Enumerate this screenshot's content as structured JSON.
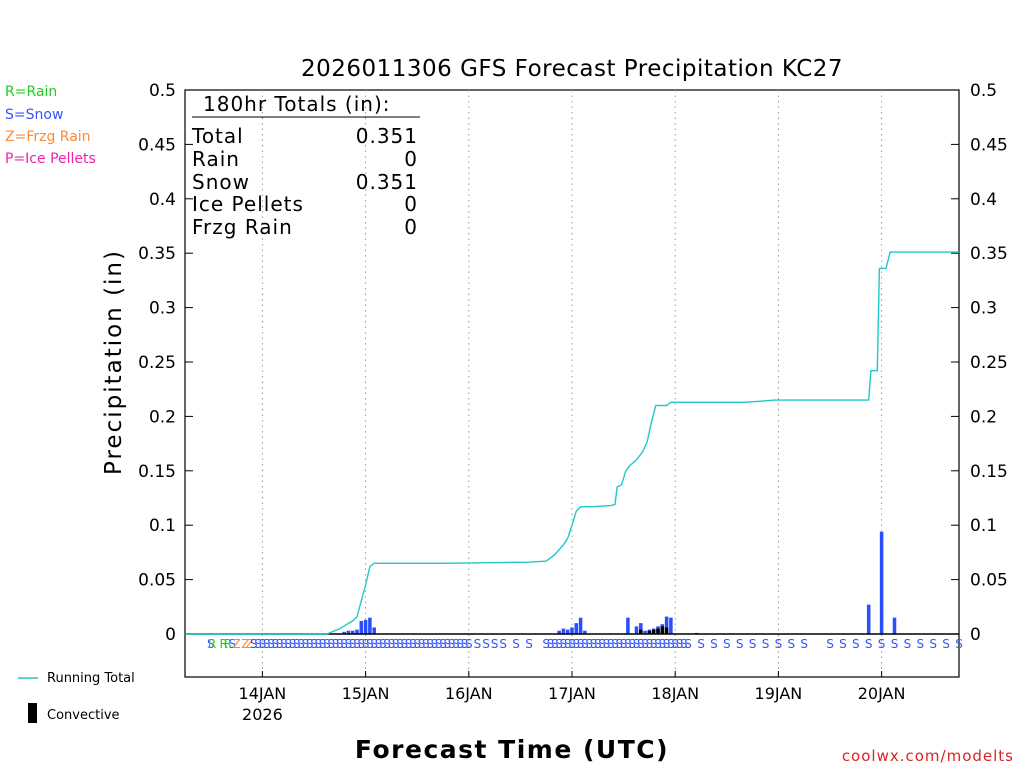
{
  "chart_data": {
    "type": "bar+line",
    "title": "2026011306 GFS Forecast Precipitation KC27",
    "xlabel": "Forecast Time (UTC)",
    "ylabel": "Precipitation (in)",
    "ylim": [
      -0.04,
      0.5
    ],
    "xlim": [
      0,
      180
    ],
    "y_ticks": [
      {
        "value": 0,
        "label": "0"
      },
      {
        "value": 0.05,
        "label": "0.05"
      },
      {
        "value": 0.1,
        "label": "0.1"
      },
      {
        "value": 0.15,
        "label": "0.15"
      },
      {
        "value": 0.2,
        "label": "0.2"
      },
      {
        "value": 0.25,
        "label": "0.25"
      },
      {
        "value": 0.3,
        "label": "0.3"
      },
      {
        "value": 0.35,
        "label": "0.35"
      },
      {
        "value": 0.4,
        "label": "0.4"
      },
      {
        "value": 0.45,
        "label": "0.45"
      },
      {
        "value": 0.5,
        "label": "0.5"
      }
    ],
    "x_ticks": [
      {
        "hour": 18,
        "label": "14JAN",
        "sublabel": "2026"
      },
      {
        "hour": 42,
        "label": "15JAN"
      },
      {
        "hour": 66,
        "label": "16JAN"
      },
      {
        "hour": 90,
        "label": "17JAN"
      },
      {
        "hour": 114,
        "label": "18JAN"
      },
      {
        "hour": 138,
        "label": "19JAN"
      },
      {
        "hour": 162,
        "label": "20JAN"
      }
    ],
    "legend_types": [
      {
        "label": "R=Rain",
        "color": "#22cc22"
      },
      {
        "label": "S=Snow",
        "color": "#3355ff"
      },
      {
        "label": "Z=Frzg Rain",
        "color": "#ff8833"
      },
      {
        "label": "P=Ice Pellets",
        "color": "#ee22aa"
      }
    ],
    "legend_series": [
      {
        "label": "Running Total",
        "color": "#22c8c8",
        "kind": "line"
      },
      {
        "label": "Convective",
        "color": "#000000",
        "kind": "bar"
      }
    ],
    "totals": {
      "header": "180hr Totals (in):",
      "rows": [
        {
          "label": "Total",
          "value": "0.351"
        },
        {
          "label": "Rain",
          "value": "0"
        },
        {
          "label": "Snow",
          "value": "0.351"
        },
        {
          "label": "Ice Pellets",
          "value": "0"
        },
        {
          "label": "Frzg Rain",
          "value": "0"
        }
      ]
    },
    "bar_colors": {
      "snow": "#2a4dff",
      "convective": "#000000"
    },
    "line_color": "#22c8c8",
    "bars": [
      {
        "hour": 37,
        "value": 0.002,
        "type": "snow"
      },
      {
        "hour": 38,
        "value": 0.003,
        "type": "snow"
      },
      {
        "hour": 39,
        "value": 0.003,
        "type": "snow"
      },
      {
        "hour": 40,
        "value": 0.004,
        "type": "snow"
      },
      {
        "hour": 41,
        "value": 0.012,
        "type": "snow"
      },
      {
        "hour": 42,
        "value": 0.013,
        "type": "snow"
      },
      {
        "hour": 43,
        "value": 0.015,
        "type": "snow"
      },
      {
        "hour": 44,
        "value": 0.006,
        "type": "snow"
      },
      {
        "hour": 87,
        "value": 0.003,
        "type": "snow"
      },
      {
        "hour": 88,
        "value": 0.005,
        "type": "snow"
      },
      {
        "hour": 89,
        "value": 0.004,
        "type": "snow"
      },
      {
        "hour": 90,
        "value": 0.006,
        "type": "snow"
      },
      {
        "hour": 91,
        "value": 0.01,
        "type": "snow"
      },
      {
        "hour": 92,
        "value": 0.015,
        "type": "snow"
      },
      {
        "hour": 93,
        "value": 0.003,
        "type": "snow"
      },
      {
        "hour": 103,
        "value": 0.015,
        "type": "snow"
      },
      {
        "hour": 105,
        "value": 0.007,
        "type": "snow"
      },
      {
        "hour": 106,
        "value": 0.01,
        "type": "snow"
      },
      {
        "hour": 107,
        "value": 0.003,
        "type": "snow"
      },
      {
        "hour": 108,
        "value": 0.004,
        "type": "snow"
      },
      {
        "hour": 109,
        "value": 0.005,
        "type": "snow"
      },
      {
        "hour": 110,
        "value": 0.007,
        "type": "snow"
      },
      {
        "hour": 111,
        "value": 0.009,
        "type": "snow"
      },
      {
        "hour": 112,
        "value": 0.016,
        "type": "snow"
      },
      {
        "hour": 113,
        "value": 0.015,
        "type": "snow"
      },
      {
        "hour": 119,
        "value": 0.001,
        "type": "snow"
      },
      {
        "hour": 159,
        "value": 0.027,
        "type": "snow"
      },
      {
        "hour": 162,
        "value": 0.094,
        "type": "snow"
      },
      {
        "hour": 165,
        "value": 0.015,
        "type": "snow"
      }
    ],
    "convective_bars": [
      {
        "hour": 106,
        "value": 0.004
      },
      {
        "hour": 108,
        "value": 0.003
      },
      {
        "hour": 109,
        "value": 0.004
      },
      {
        "hour": 110,
        "value": 0.005
      },
      {
        "hour": 111,
        "value": 0.007
      },
      {
        "hour": 112,
        "value": 0.006
      }
    ],
    "running_total": [
      [
        0,
        0
      ],
      [
        33,
        0
      ],
      [
        36,
        0.005
      ],
      [
        39,
        0.012
      ],
      [
        40,
        0.016
      ],
      [
        42,
        0.045
      ],
      [
        43,
        0.062
      ],
      [
        44,
        0.065
      ],
      [
        60,
        0.065
      ],
      [
        80,
        0.066
      ],
      [
        84,
        0.067
      ],
      [
        86,
        0.073
      ],
      [
        88,
        0.082
      ],
      [
        89,
        0.088
      ],
      [
        90,
        0.1
      ],
      [
        91,
        0.113
      ],
      [
        92,
        0.117
      ],
      [
        95,
        0.117
      ],
      [
        99,
        0.118
      ],
      [
        100,
        0.119
      ],
      [
        100.5,
        0.135
      ],
      [
        101.5,
        0.137
      ],
      [
        102.5,
        0.15
      ],
      [
        103.5,
        0.155
      ],
      [
        105,
        0.16
      ],
      [
        106.5,
        0.168
      ],
      [
        107.5,
        0.177
      ],
      [
        108.5,
        0.195
      ],
      [
        109.5,
        0.21
      ],
      [
        112,
        0.21
      ],
      [
        113,
        0.213
      ],
      [
        130,
        0.213
      ],
      [
        134,
        0.214
      ],
      [
        137,
        0.215
      ],
      [
        159,
        0.215
      ],
      [
        159.5,
        0.242
      ],
      [
        161,
        0.242
      ],
      [
        161.5,
        0.336
      ],
      [
        163,
        0.336
      ],
      [
        164,
        0.351
      ],
      [
        180,
        0.351
      ]
    ],
    "precip_type_strip": [
      {
        "hour": 6,
        "type": "S"
      },
      {
        "hour": 6.3,
        "type": "R"
      },
      {
        "hour": 9,
        "type": "R"
      },
      {
        "hour": 10,
        "type": "R"
      },
      {
        "hour": 11,
        "type": "S"
      },
      {
        "hour": 12,
        "type": "Z"
      },
      {
        "hour": 14,
        "type": "Z"
      },
      {
        "hour": 15,
        "type": "Z"
      },
      {
        "hour": 16,
        "type": "S"
      },
      {
        "hour": 17,
        "type": "S"
      },
      {
        "hour": 18,
        "type": "S"
      },
      {
        "hour": 19,
        "type": "S"
      },
      {
        "hour": 20,
        "type": "S"
      },
      {
        "hour": 21,
        "type": "S"
      },
      {
        "hour": 22,
        "type": "S"
      },
      {
        "hour": 23,
        "type": "S"
      },
      {
        "hour": 24,
        "type": "S"
      },
      {
        "hour": 25,
        "type": "S"
      },
      {
        "hour": 26,
        "type": "S"
      },
      {
        "hour": 27,
        "type": "S"
      },
      {
        "hour": 28,
        "type": "S"
      },
      {
        "hour": 29,
        "type": "S"
      },
      {
        "hour": 30,
        "type": "S"
      },
      {
        "hour": 31,
        "type": "S"
      },
      {
        "hour": 32,
        "type": "S"
      },
      {
        "hour": 33,
        "type": "S"
      },
      {
        "hour": 34,
        "type": "S"
      },
      {
        "hour": 35,
        "type": "S"
      },
      {
        "hour": 36,
        "type": "S"
      },
      {
        "hour": 37,
        "type": "S"
      },
      {
        "hour": 38,
        "type": "S"
      },
      {
        "hour": 39,
        "type": "S"
      },
      {
        "hour": 40,
        "type": "S"
      },
      {
        "hour": 41,
        "type": "S"
      },
      {
        "hour": 42,
        "type": "S"
      },
      {
        "hour": 43,
        "type": "S"
      },
      {
        "hour": 44,
        "type": "S"
      },
      {
        "hour": 45,
        "type": "S"
      },
      {
        "hour": 46,
        "type": "S"
      },
      {
        "hour": 47,
        "type": "S"
      },
      {
        "hour": 48,
        "type": "S"
      },
      {
        "hour": 49,
        "type": "S"
      },
      {
        "hour": 50,
        "type": "S"
      },
      {
        "hour": 51,
        "type": "S"
      },
      {
        "hour": 52,
        "type": "S"
      },
      {
        "hour": 53,
        "type": "S"
      },
      {
        "hour": 54,
        "type": "S"
      },
      {
        "hour": 55,
        "type": "S"
      },
      {
        "hour": 56,
        "type": "S"
      },
      {
        "hour": 57,
        "type": "S"
      },
      {
        "hour": 58,
        "type": "S"
      },
      {
        "hour": 59,
        "type": "S"
      },
      {
        "hour": 60,
        "type": "S"
      },
      {
        "hour": 61,
        "type": "S"
      },
      {
        "hour": 62,
        "type": "S"
      },
      {
        "hour": 63,
        "type": "S"
      },
      {
        "hour": 64,
        "type": "S"
      },
      {
        "hour": 65,
        "type": "S"
      },
      {
        "hour": 66,
        "type": "S"
      },
      {
        "hour": 68,
        "type": "S"
      },
      {
        "hour": 70,
        "type": "S"
      },
      {
        "hour": 72,
        "type": "S"
      },
      {
        "hour": 74,
        "type": "S"
      },
      {
        "hour": 77,
        "type": "S"
      },
      {
        "hour": 80,
        "type": "S"
      },
      {
        "hour": 84,
        "type": "S"
      },
      {
        "hour": 85,
        "type": "S"
      },
      {
        "hour": 86,
        "type": "S"
      },
      {
        "hour": 87,
        "type": "S"
      },
      {
        "hour": 88,
        "type": "S"
      },
      {
        "hour": 89,
        "type": "S"
      },
      {
        "hour": 90,
        "type": "S"
      },
      {
        "hour": 91,
        "type": "S"
      },
      {
        "hour": 92,
        "type": "S"
      },
      {
        "hour": 93,
        "type": "S"
      },
      {
        "hour": 94,
        "type": "S"
      },
      {
        "hour": 95,
        "type": "S"
      },
      {
        "hour": 96,
        "type": "S"
      },
      {
        "hour": 97,
        "type": "S"
      },
      {
        "hour": 98,
        "type": "S"
      },
      {
        "hour": 99,
        "type": "S"
      },
      {
        "hour": 100,
        "type": "S"
      },
      {
        "hour": 101,
        "type": "S"
      },
      {
        "hour": 102,
        "type": "S"
      },
      {
        "hour": 103,
        "type": "S"
      },
      {
        "hour": 104,
        "type": "S"
      },
      {
        "hour": 105,
        "type": "S"
      },
      {
        "hour": 106,
        "type": "S"
      },
      {
        "hour": 107,
        "type": "S"
      },
      {
        "hour": 108,
        "type": "S"
      },
      {
        "hour": 109,
        "type": "S"
      },
      {
        "hour": 110,
        "type": "S"
      },
      {
        "hour": 111,
        "type": "S"
      },
      {
        "hour": 112,
        "type": "S"
      },
      {
        "hour": 113,
        "type": "S"
      },
      {
        "hour": 114,
        "type": "S"
      },
      {
        "hour": 115,
        "type": "S"
      },
      {
        "hour": 116,
        "type": "S"
      },
      {
        "hour": 117,
        "type": "S"
      },
      {
        "hour": 120,
        "type": "S"
      },
      {
        "hour": 123,
        "type": "S"
      },
      {
        "hour": 126,
        "type": "S"
      },
      {
        "hour": 129,
        "type": "S"
      },
      {
        "hour": 132,
        "type": "S"
      },
      {
        "hour": 135,
        "type": "S"
      },
      {
        "hour": 138,
        "type": "S"
      },
      {
        "hour": 141,
        "type": "S"
      },
      {
        "hour": 144,
        "type": "S"
      },
      {
        "hour": 150,
        "type": "S"
      },
      {
        "hour": 153,
        "type": "S"
      },
      {
        "hour": 156,
        "type": "S"
      },
      {
        "hour": 159,
        "type": "S"
      },
      {
        "hour": 162,
        "type": "S"
      },
      {
        "hour": 165,
        "type": "S"
      },
      {
        "hour": 168,
        "type": "S"
      },
      {
        "hour": 171,
        "type": "S"
      },
      {
        "hour": 174,
        "type": "S"
      },
      {
        "hour": 177,
        "type": "S"
      },
      {
        "hour": 180,
        "type": "S"
      }
    ]
  },
  "credit": "coolwx.com/modelts"
}
